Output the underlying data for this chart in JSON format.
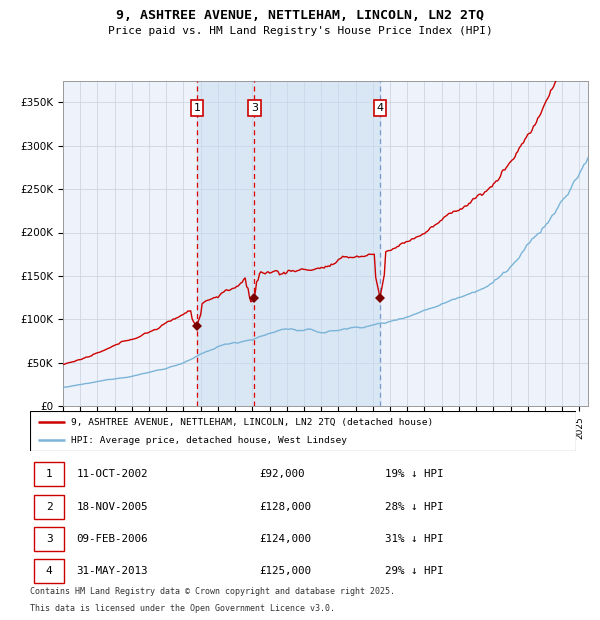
{
  "title1": "9, ASHTREE AVENUE, NETTLEHAM, LINCOLN, LN2 2TQ",
  "title2": "Price paid vs. HM Land Registry's House Price Index (HPI)",
  "ylabel_ticks": [
    "£0",
    "£50K",
    "£100K",
    "£150K",
    "£200K",
    "£250K",
    "£300K",
    "£350K"
  ],
  "ytick_vals": [
    0,
    50000,
    100000,
    150000,
    200000,
    250000,
    300000,
    350000
  ],
  "ylim": [
    0,
    375000
  ],
  "xlim": [
    1995.0,
    2025.5
  ],
  "hpi_color": "#7ab4d8",
  "price_color": "#cc0000",
  "chart_bg": "#eef3fb",
  "grid_color": "#c8d0dc",
  "vline_red_color": "#dd0000",
  "vline_blue_color": "#7799cc",
  "shade_color": "#c8ddf0",
  "shade_alpha": 0.55,
  "t1_x": 2002.78,
  "t2_x": 2005.88,
  "t3_x": 2006.12,
  "t4_x": 2013.42,
  "t1_y": 92000,
  "t2_y": 128000,
  "t3_y": 124000,
  "t4_y": 125000,
  "legend_line1": "9, ASHTREE AVENUE, NETTLEHAM, LINCOLN, LN2 2TQ (detached house)",
  "legend_line2": "HPI: Average price, detached house, West Lindsey",
  "table_rows": [
    [
      "1",
      "11-OCT-2002",
      "£92,000",
      "19% ↓ HPI"
    ],
    [
      "2",
      "18-NOV-2005",
      "£128,000",
      "28% ↓ HPI"
    ],
    [
      "3",
      "09-FEB-2006",
      "£124,000",
      "31% ↓ HPI"
    ],
    [
      "4",
      "31-MAY-2013",
      "£125,000",
      "29% ↓ HPI"
    ]
  ],
  "footnote1": "Contains HM Land Registry data © Crown copyright and database right 2025.",
  "footnote2": "This data is licensed under the Open Government Licence v3.0."
}
